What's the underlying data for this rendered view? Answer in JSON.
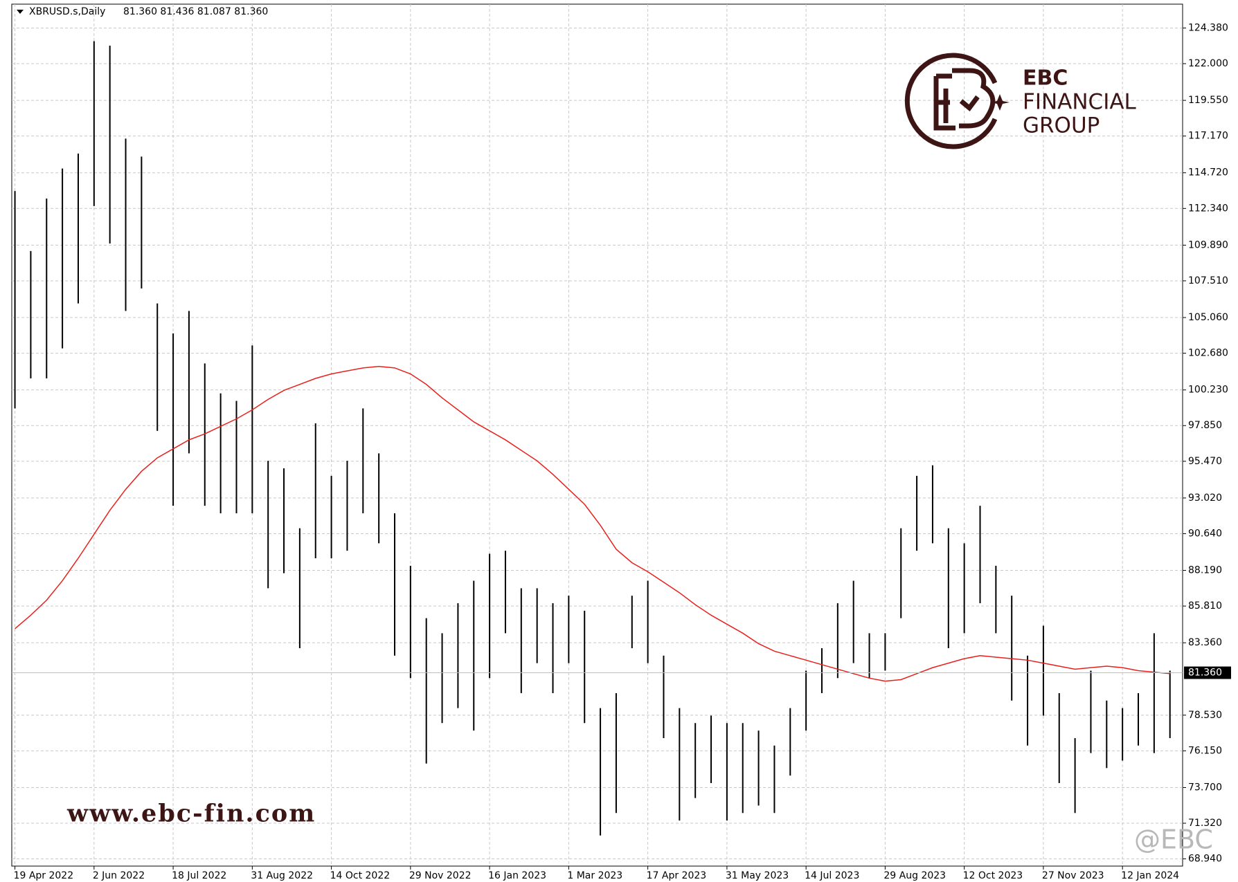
{
  "chart_data": {
    "type": "ohlc",
    "title": "XBRUSD.s,Daily",
    "subtitle": "81.360 81.436 81.087 81.360",
    "categories": [
      "19 Apr 2022",
      null,
      null,
      null,
      null,
      "2 Jun 2022",
      null,
      null,
      null,
      null,
      "18 Jul 2022",
      null,
      null,
      null,
      null,
      "31 Aug 2022",
      null,
      null,
      null,
      null,
      "14 Oct 2022",
      null,
      null,
      null,
      null,
      "29 Nov 2022",
      null,
      null,
      null,
      null,
      "16 Jan 2023",
      null,
      null,
      null,
      null,
      "1 Mar 2023",
      null,
      null,
      null,
      null,
      "17 Apr 2023",
      null,
      null,
      null,
      null,
      "31 May 2023",
      null,
      null,
      null,
      null,
      "14 Jul 2023",
      null,
      null,
      null,
      null,
      "29 Aug 2023",
      null,
      null,
      null,
      null,
      "12 Oct 2023",
      null,
      null,
      null,
      null,
      "27 Nov 2023",
      null,
      null,
      null,
      null,
      "12 Jan 2024",
      null,
      null,
      null
    ],
    "high": [
      113.5,
      109.5,
      113,
      115,
      116,
      123.5,
      123.2,
      117,
      115.8,
      106,
      104,
      105.5,
      102,
      100,
      99.5,
      103.2,
      95.5,
      95,
      91,
      98,
      94.5,
      95.5,
      99,
      96,
      92,
      88.5,
      85,
      84,
      86,
      87.5,
      89.3,
      89.5,
      87,
      87,
      86,
      86.5,
      85.5,
      79,
      80,
      86.5,
      87.5,
      82.5,
      79,
      78,
      78.5,
      78,
      78,
      77.5,
      76.5,
      79,
      81.5,
      83,
      86,
      87.5,
      84,
      84,
      91,
      94.5,
      95.2,
      91,
      90,
      92.5,
      88.5,
      86.5,
      82.5,
      84.5,
      80,
      77,
      81.5,
      79.5,
      79,
      80,
      84,
      81.5
    ],
    "low": [
      99,
      101,
      101,
      103,
      106,
      112.5,
      110,
      105.5,
      107,
      97.5,
      92.5,
      96,
      92.5,
      92,
      92,
      92,
      87,
      88,
      83,
      89,
      89,
      89.5,
      92,
      90,
      82.5,
      81,
      75.3,
      78,
      79,
      77.5,
      81,
      84,
      80,
      82,
      80,
      82,
      78,
      70.5,
      72,
      83,
      82,
      77,
      71.5,
      73,
      74,
      71.5,
      72,
      72.5,
      72,
      74.5,
      77.5,
      80,
      81,
      82,
      81,
      81.5,
      85,
      89.5,
      90,
      83,
      84,
      86,
      84,
      79.5,
      76.5,
      78.5,
      74,
      72,
      76,
      75,
      75.5,
      76.5,
      76,
      77
    ],
    "color": "#000000",
    "moving_average": {
      "color": "#e8201c",
      "values": [
        84.3,
        85.2,
        86.2,
        87.5,
        89,
        90.6,
        92.2,
        93.6,
        94.8,
        95.7,
        96.3,
        96.9,
        97.3,
        97.8,
        98.3,
        98.9,
        99.6,
        100.2,
        100.6,
        101,
        101.3,
        101.5,
        101.7,
        101.8,
        101.7,
        101.3,
        100.6,
        99.7,
        98.9,
        98.1,
        97.5,
        96.9,
        96.2,
        95.5,
        94.6,
        93.6,
        92.6,
        91.2,
        89.6,
        88.7,
        88.1,
        87.4,
        86.7,
        85.9,
        85.2,
        84.6,
        84,
        83.3,
        82.8,
        82.5,
        82.2,
        81.9,
        81.6,
        81.3,
        81,
        80.8,
        80.9,
        81.3,
        81.7,
        82,
        82.3,
        82.5,
        82.4,
        82.3,
        82.2,
        82,
        81.8,
        81.6,
        81.7,
        81.8,
        81.7,
        81.5,
        81.4,
        81.3
      ]
    },
    "last_price": {
      "value": 81.36,
      "label": "81.360"
    },
    "ylim": [
      68.46,
      125.97
    ],
    "yticks": [
      {
        "value": 68.94,
        "label": "68.940"
      },
      {
        "value": 71.32,
        "label": "71.320"
      },
      {
        "value": 73.7,
        "label": "73.700"
      },
      {
        "value": 76.15,
        "label": "76.150"
      },
      {
        "value": 78.53,
        "label": "78.530"
      },
      {
        "value": 83.36,
        "label": "83.360"
      },
      {
        "value": 85.81,
        "label": "85.810"
      },
      {
        "value": 88.19,
        "label": "88.190"
      },
      {
        "value": 90.64,
        "label": "90.640"
      },
      {
        "value": 93.02,
        "label": "93.020"
      },
      {
        "value": 95.47,
        "label": "95.470"
      },
      {
        "value": 97.85,
        "label": "97.850"
      },
      {
        "value": 100.23,
        "label": "100.230"
      },
      {
        "value": 102.68,
        "label": "102.680"
      },
      {
        "value": 105.06,
        "label": "105.060"
      },
      {
        "value": 107.51,
        "label": "107.510"
      },
      {
        "value": 109.89,
        "label": "109.890"
      },
      {
        "value": 112.34,
        "label": "112.340"
      },
      {
        "value": 114.72,
        "label": "114.720"
      },
      {
        "value": 117.17,
        "label": "117.170"
      },
      {
        "value": 119.55,
        "label": "119.550"
      },
      {
        "value": 122,
        "label": "122.000"
      },
      {
        "value": 124.38,
        "label": "124.380"
      }
    ],
    "grid": true,
    "logo": [
      "EBC",
      "FINANCIAL",
      "GROUP"
    ],
    "website": "www.ebc-fin.com",
    "watermark": "@EBC"
  }
}
